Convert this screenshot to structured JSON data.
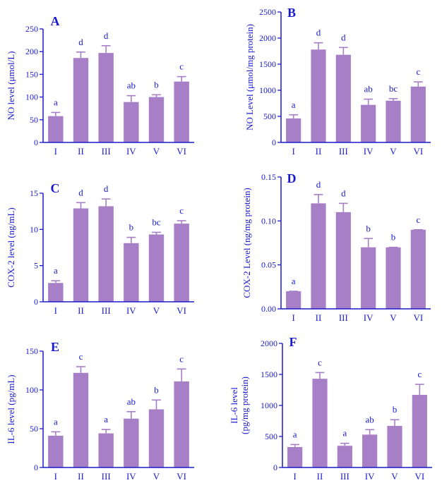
{
  "colors": {
    "bar": "#a77fc6",
    "axis": "#1a1acc",
    "label": "#1a1acc"
  },
  "chart_data": [
    {
      "panel": "A",
      "type": "bar",
      "categories": [
        "I",
        "II",
        "III",
        "IV",
        "V",
        "VI"
      ],
      "values": [
        58,
        186,
        197,
        89,
        100,
        134
      ],
      "errors": [
        8,
        13,
        16,
        14,
        5,
        11
      ],
      "significance": [
        "a",
        "d",
        "d",
        "ab",
        "b",
        "c"
      ],
      "ylabel": "NO level (μmol/L)",
      "ylim": [
        0,
        250
      ],
      "yticks": [
        "0",
        "50",
        "100",
        "150",
        "200",
        "250"
      ]
    },
    {
      "panel": "B",
      "type": "bar",
      "categories": [
        "I",
        "II",
        "III",
        "IV",
        "V",
        "VI"
      ],
      "values": [
        460,
        1780,
        1680,
        720,
        800,
        1070
      ],
      "errors": [
        70,
        130,
        140,
        110,
        40,
        90
      ],
      "significance": [
        "a",
        "d",
        "d",
        "ab",
        "bc",
        "c"
      ],
      "ylabel": "NO Level (μmol/mg protein)",
      "ylim": [
        0,
        2500
      ],
      "yticks": [
        "0",
        "500",
        "1000",
        "1500",
        "2000",
        "2500"
      ]
    },
    {
      "panel": "C",
      "type": "bar",
      "categories": [
        "I",
        "II",
        "III",
        "IV",
        "V",
        "VI"
      ],
      "values": [
        2.6,
        12.9,
        13.2,
        8.1,
        9.3,
        10.8
      ],
      "errors": [
        0.3,
        0.8,
        1.0,
        0.8,
        0.3,
        0.4
      ],
      "significance": [
        "a",
        "d",
        "d",
        "b",
        "bc",
        "c"
      ],
      "ylabel": "COX-2 level (ng/mL)",
      "ylim": [
        0,
        15
      ],
      "yticks": [
        "0",
        "5",
        "10",
        "15"
      ]
    },
    {
      "panel": "D",
      "type": "bar",
      "categories": [
        "I",
        "II",
        "III",
        "IV",
        "V",
        "VI"
      ],
      "values": [
        0.02,
        0.12,
        0.11,
        0.07,
        0.07,
        0.09
      ],
      "errors": [
        0,
        0.01,
        0.01,
        0.01,
        0,
        0
      ],
      "significance": [
        "a",
        "d",
        "d",
        "b",
        "b",
        "c"
      ],
      "ylabel": "COX-2 Level (ng/mg protein)",
      "ylim": [
        0,
        0.15
      ],
      "yticks": [
        "0.00",
        "0.05",
        "0.10",
        "0.15"
      ]
    },
    {
      "panel": "E",
      "type": "bar",
      "categories": [
        "I",
        "II",
        "III",
        "IV",
        "V",
        "VI"
      ],
      "values": [
        41,
        122,
        44,
        63,
        75,
        111
      ],
      "errors": [
        5,
        8,
        5,
        9,
        12,
        16
      ],
      "significance": [
        "a",
        "c",
        "a",
        "ab",
        "b",
        "c"
      ],
      "ylabel": "IL-6 level (pg/mL)",
      "ylim": [
        0,
        150
      ],
      "yticks": [
        "0",
        "50",
        "100",
        "150"
      ]
    },
    {
      "panel": "F",
      "type": "bar",
      "categories": [
        "I",
        "II",
        "III",
        "IV",
        "V",
        "VI"
      ],
      "values": [
        330,
        1430,
        350,
        530,
        670,
        1170
      ],
      "errors": [
        40,
        100,
        40,
        80,
        100,
        170
      ],
      "significance": [
        "a",
        "c",
        "a",
        "ab",
        "b",
        "c"
      ],
      "ylabel": [
        "IL-6 level",
        "(pg/mg protein)"
      ],
      "ylim": [
        0,
        2000
      ],
      "yticks": [
        "0",
        "500",
        "1000",
        "1500",
        "2000"
      ]
    }
  ]
}
